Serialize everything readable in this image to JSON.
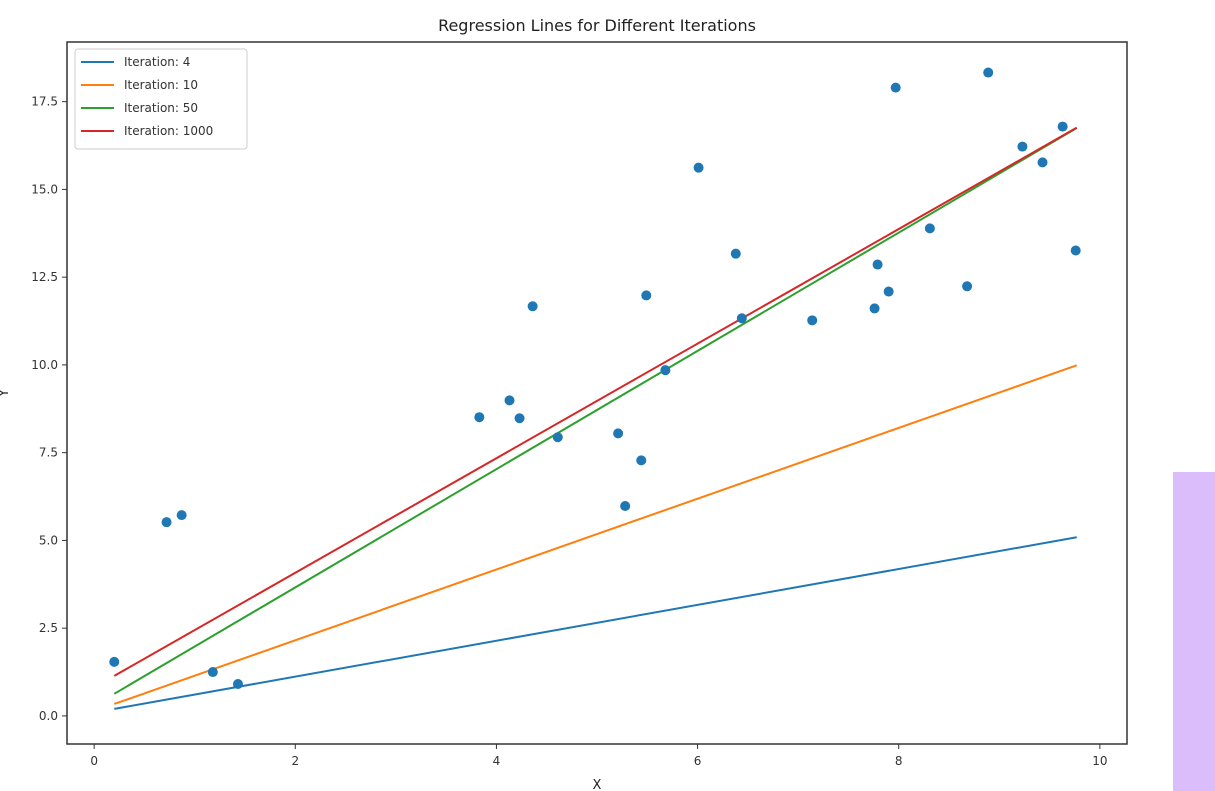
{
  "chart_data": {
    "type": "scatter",
    "title": "Regression Lines for Different Iterations",
    "xlabel": "X",
    "ylabel": "Y",
    "xlim": [
      -0.27,
      10.27
    ],
    "ylim": [
      -0.8,
      19.2
    ],
    "xticks": [
      0,
      2,
      4,
      6,
      8,
      10
    ],
    "yticks": [
      0.0,
      2.5,
      5.0,
      7.5,
      10.0,
      12.5,
      15.0,
      17.5
    ],
    "ytick_labels": [
      "0.0",
      "2.5",
      "5.0",
      "7.5",
      "10.0",
      "12.5",
      "15.0",
      "17.5"
    ],
    "grid": false,
    "legend_position": "top-left",
    "points": {
      "color": "#1f77b4",
      "x": [
        0.2,
        0.72,
        0.87,
        1.18,
        1.43,
        3.83,
        4.13,
        4.23,
        4.36,
        4.61,
        5.21,
        5.28,
        5.44,
        5.49,
        5.68,
        6.01,
        6.38,
        6.44,
        7.14,
        7.76,
        7.79,
        7.9,
        7.97,
        8.31,
        8.68,
        8.89,
        9.23,
        9.43,
        9.63,
        9.76
      ],
      "y": [
        1.54,
        5.52,
        5.72,
        1.25,
        0.91,
        8.51,
        8.99,
        8.48,
        11.67,
        7.94,
        8.05,
        5.98,
        7.28,
        11.98,
        9.85,
        15.62,
        13.17,
        11.33,
        11.27,
        11.61,
        12.86,
        12.09,
        17.9,
        13.89,
        12.24,
        18.33,
        16.22,
        15.77,
        16.79,
        13.26
      ]
    },
    "series": [
      {
        "name": "Iteration: 4",
        "color": "#1f77b4",
        "x": [
          0.2,
          9.77
        ],
        "y": [
          0.2,
          5.09
        ]
      },
      {
        "name": "Iteration: 10",
        "color": "#ff7f0e",
        "x": [
          0.2,
          9.77
        ],
        "y": [
          0.34,
          9.99
        ]
      },
      {
        "name": "Iteration: 50",
        "color": "#2ca02c",
        "x": [
          0.2,
          9.77
        ],
        "y": [
          0.63,
          16.75
        ]
      },
      {
        "name": "Iteration: 1000",
        "color": "#d62728",
        "x": [
          0.2,
          9.77
        ],
        "y": [
          1.14,
          16.76
        ]
      }
    ]
  }
}
